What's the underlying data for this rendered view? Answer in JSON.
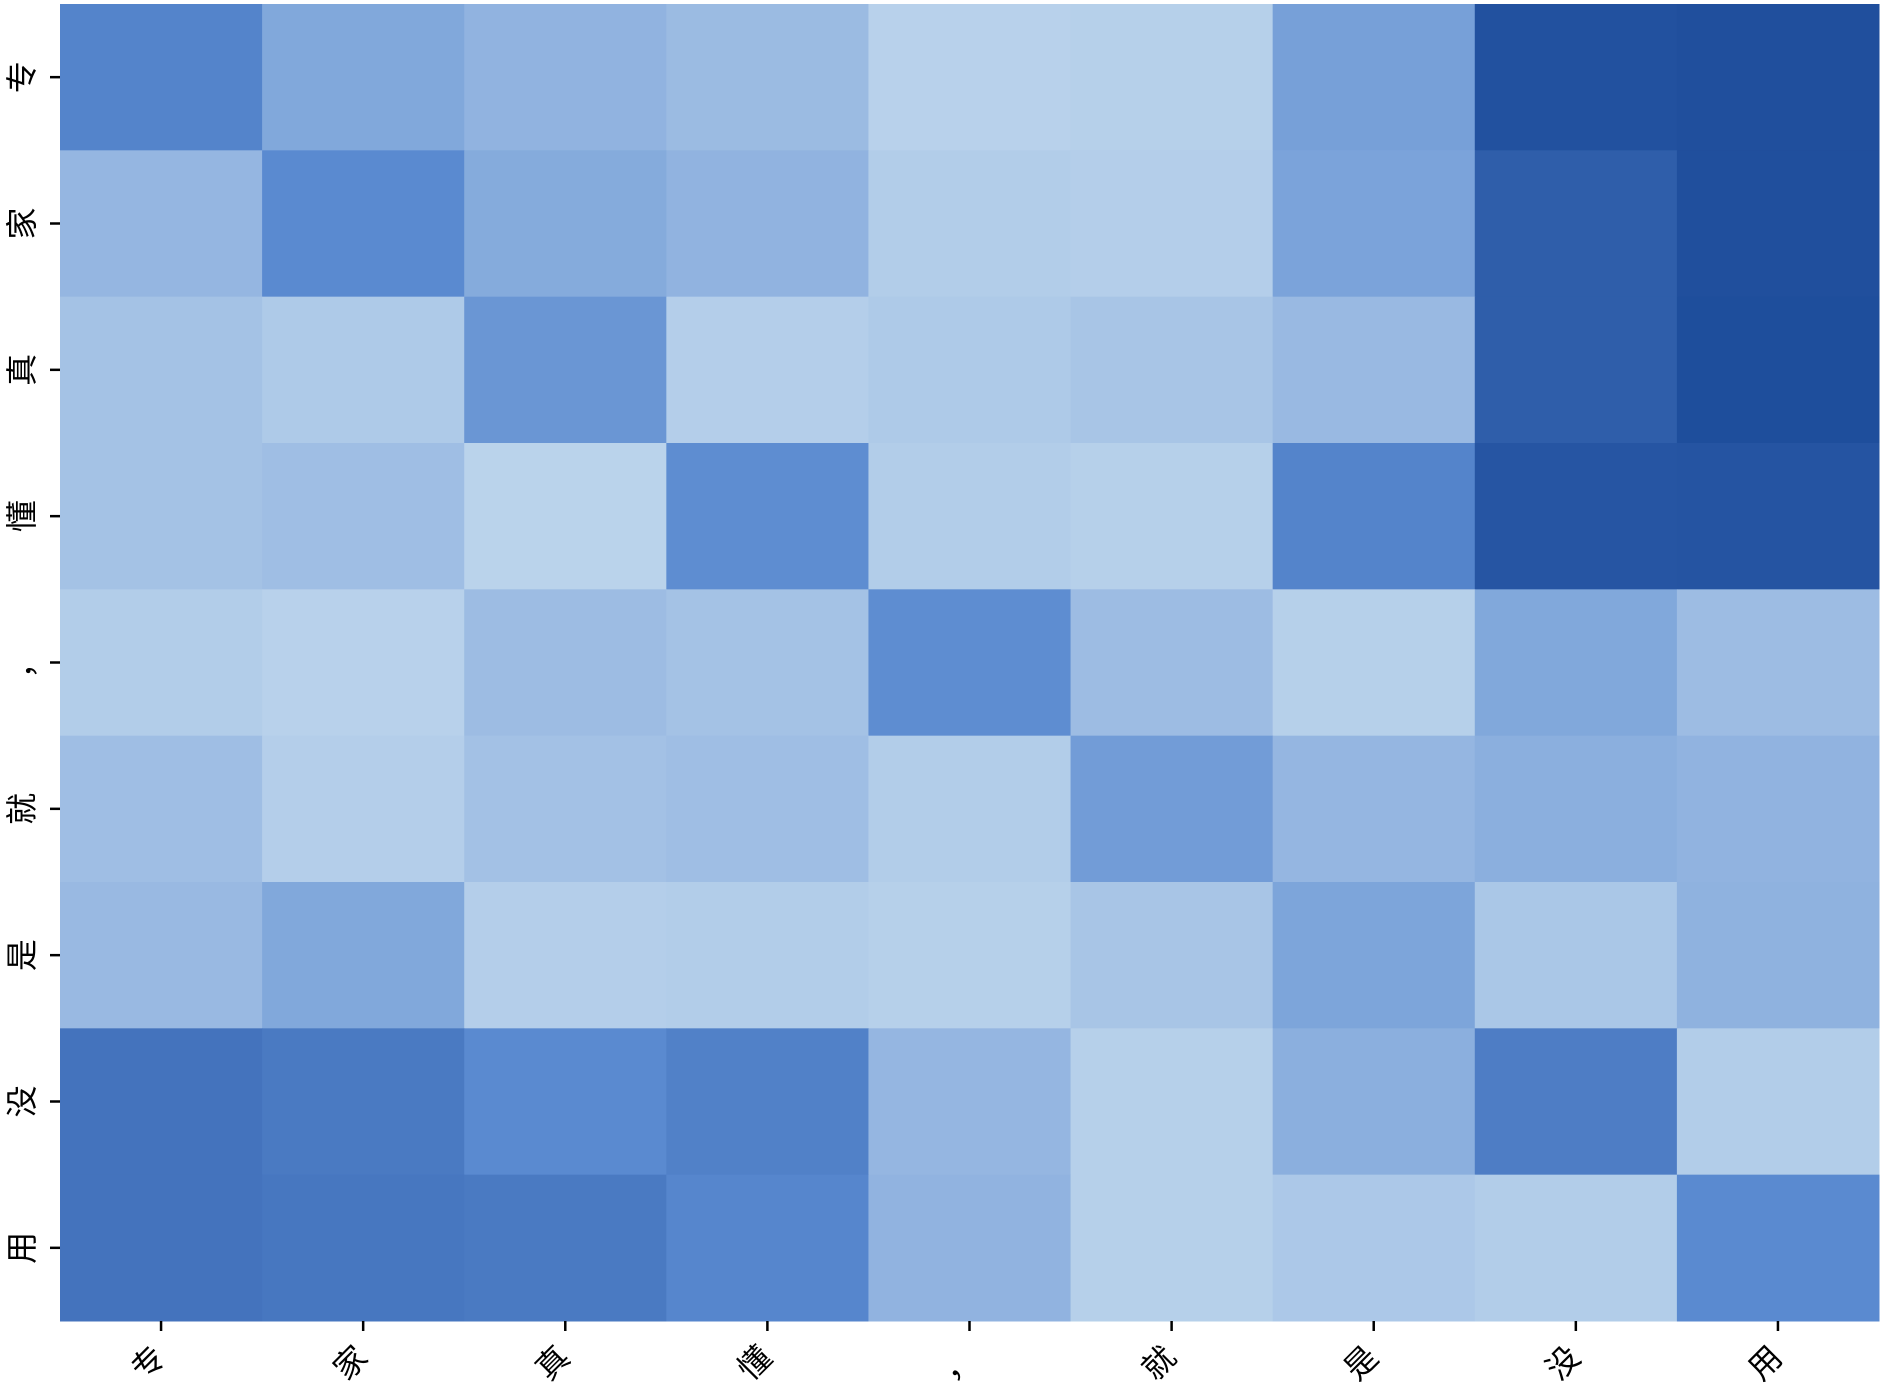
{
  "chart_data": {
    "type": "heatmap",
    "x_categories": [
      "专",
      "家",
      "真",
      "懂",
      "，",
      "就",
      "是",
      "没",
      "用"
    ],
    "y_categories": [
      "专",
      "家",
      "真",
      "懂",
      "，",
      "就",
      "是",
      "没",
      "用"
    ],
    "values": [
      [
        0.55,
        0.3,
        0.22,
        0.17,
        0.02,
        0.03,
        0.35,
        0.95,
        0.97
      ],
      [
        0.2,
        0.5,
        0.28,
        0.22,
        0.05,
        0.04,
        0.33,
        0.85,
        0.97
      ],
      [
        0.12,
        0.07,
        0.42,
        0.04,
        0.07,
        0.1,
        0.18,
        0.85,
        0.98
      ],
      [
        0.12,
        0.15,
        0.01,
        0.48,
        0.05,
        0.03,
        0.55,
        0.92,
        0.93
      ],
      [
        0.05,
        0.02,
        0.16,
        0.12,
        0.48,
        0.16,
        0.03,
        0.3,
        0.16
      ],
      [
        0.15,
        0.04,
        0.13,
        0.15,
        0.05,
        0.38,
        0.2,
        0.25,
        0.22
      ],
      [
        0.18,
        0.3,
        0.04,
        0.05,
        0.03,
        0.1,
        0.32,
        0.09,
        0.23
      ],
      [
        0.68,
        0.63,
        0.5,
        0.57,
        0.2,
        0.03,
        0.25,
        0.6,
        0.05
      ],
      [
        0.68,
        0.65,
        0.63,
        0.53,
        0.22,
        0.03,
        0.08,
        0.05,
        0.5
      ]
    ],
    "zlim": [
      0,
      1
    ],
    "colormap": [
      "#bcd4ec",
      "#5a8ad0",
      "#1c4b9a"
    ]
  }
}
